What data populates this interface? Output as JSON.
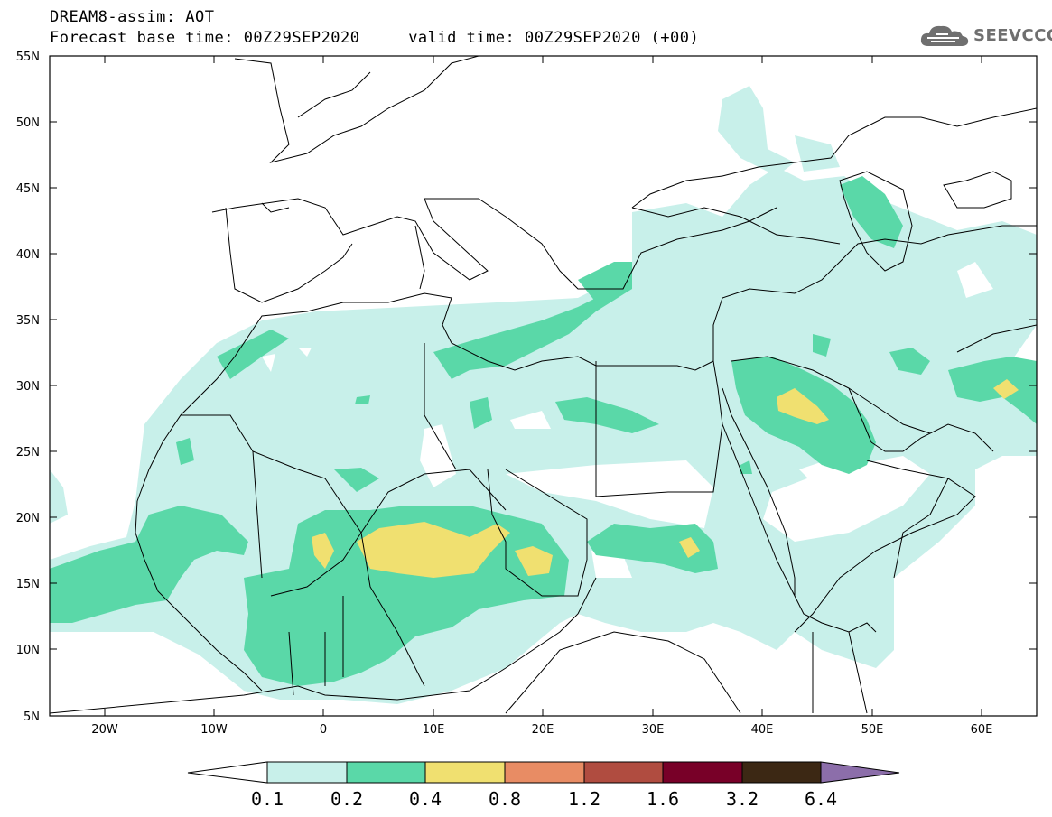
{
  "header": {
    "line1": "DREAM8-assim: AOT",
    "line2": "Forecast base time: 00Z29SEP2020     valid time: 00Z29SEP2020 (+00)",
    "logo_text": "SEEVCCC",
    "logo_icon": "cloud-icon"
  },
  "map": {
    "variable": "AOT",
    "lon_range": [
      -25,
      65
    ],
    "lat_range": [
      5,
      55
    ],
    "lat_labels": [
      "55N",
      "50N",
      "45N",
      "40N",
      "35N",
      "30N",
      "25N",
      "20N",
      "15N",
      "10N",
      "5N"
    ],
    "lon_labels": [
      "20W",
      "10W",
      "0",
      "10E",
      "20E",
      "30E",
      "40E",
      "50E",
      "60E"
    ]
  },
  "colorbar": {
    "levels": [
      "0.1",
      "0.2",
      "0.4",
      "0.8",
      "1.2",
      "1.6",
      "3.2",
      "6.4"
    ],
    "colors": [
      "#c8f0ea",
      "#5ad8a8",
      "#f0e070",
      "#e88c64",
      "#b04c40",
      "#780028",
      "#3c2814",
      "#8c6eaa"
    ],
    "under_color": "#ffffff"
  }
}
